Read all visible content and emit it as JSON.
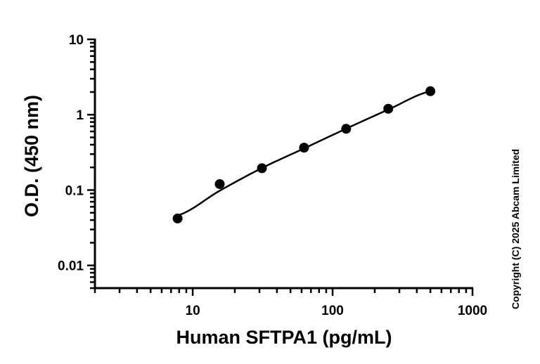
{
  "chart_data": {
    "type": "scatter",
    "xlabel": "Human SFTPA1 (pg/mL)",
    "ylabel": "O.D. (450 nm)",
    "x_scale": "log",
    "y_scale": "log",
    "xlim": [
      2,
      1000
    ],
    "ylim": [
      0.005,
      10
    ],
    "x_ticks": [
      {
        "value": 10,
        "label": "10"
      },
      {
        "value": 100,
        "label": "100"
      },
      {
        "value": 1000,
        "label": "1000"
      }
    ],
    "y_ticks": [
      {
        "value": 0.01,
        "label": "0.01"
      },
      {
        "value": 0.1,
        "label": "0.1"
      },
      {
        "value": 1,
        "label": "1"
      },
      {
        "value": 10,
        "label": "10"
      }
    ],
    "series": [
      {
        "x": [
          7.8,
          15.6,
          31.25,
          62.5,
          125,
          250,
          500
        ],
        "y": [
          0.042,
          0.12,
          0.195,
          0.365,
          0.65,
          1.2,
          2.05
        ]
      }
    ],
    "fit_curve": {
      "x": [
        7.8,
        15.6,
        31.25,
        62.5,
        125,
        250,
        500
      ],
      "y": [
        0.046,
        0.098,
        0.196,
        0.357,
        0.653,
        1.17,
        2.05
      ]
    },
    "grid": false
  },
  "copyright": "Copyright (C) 2025 Abcam Limited"
}
